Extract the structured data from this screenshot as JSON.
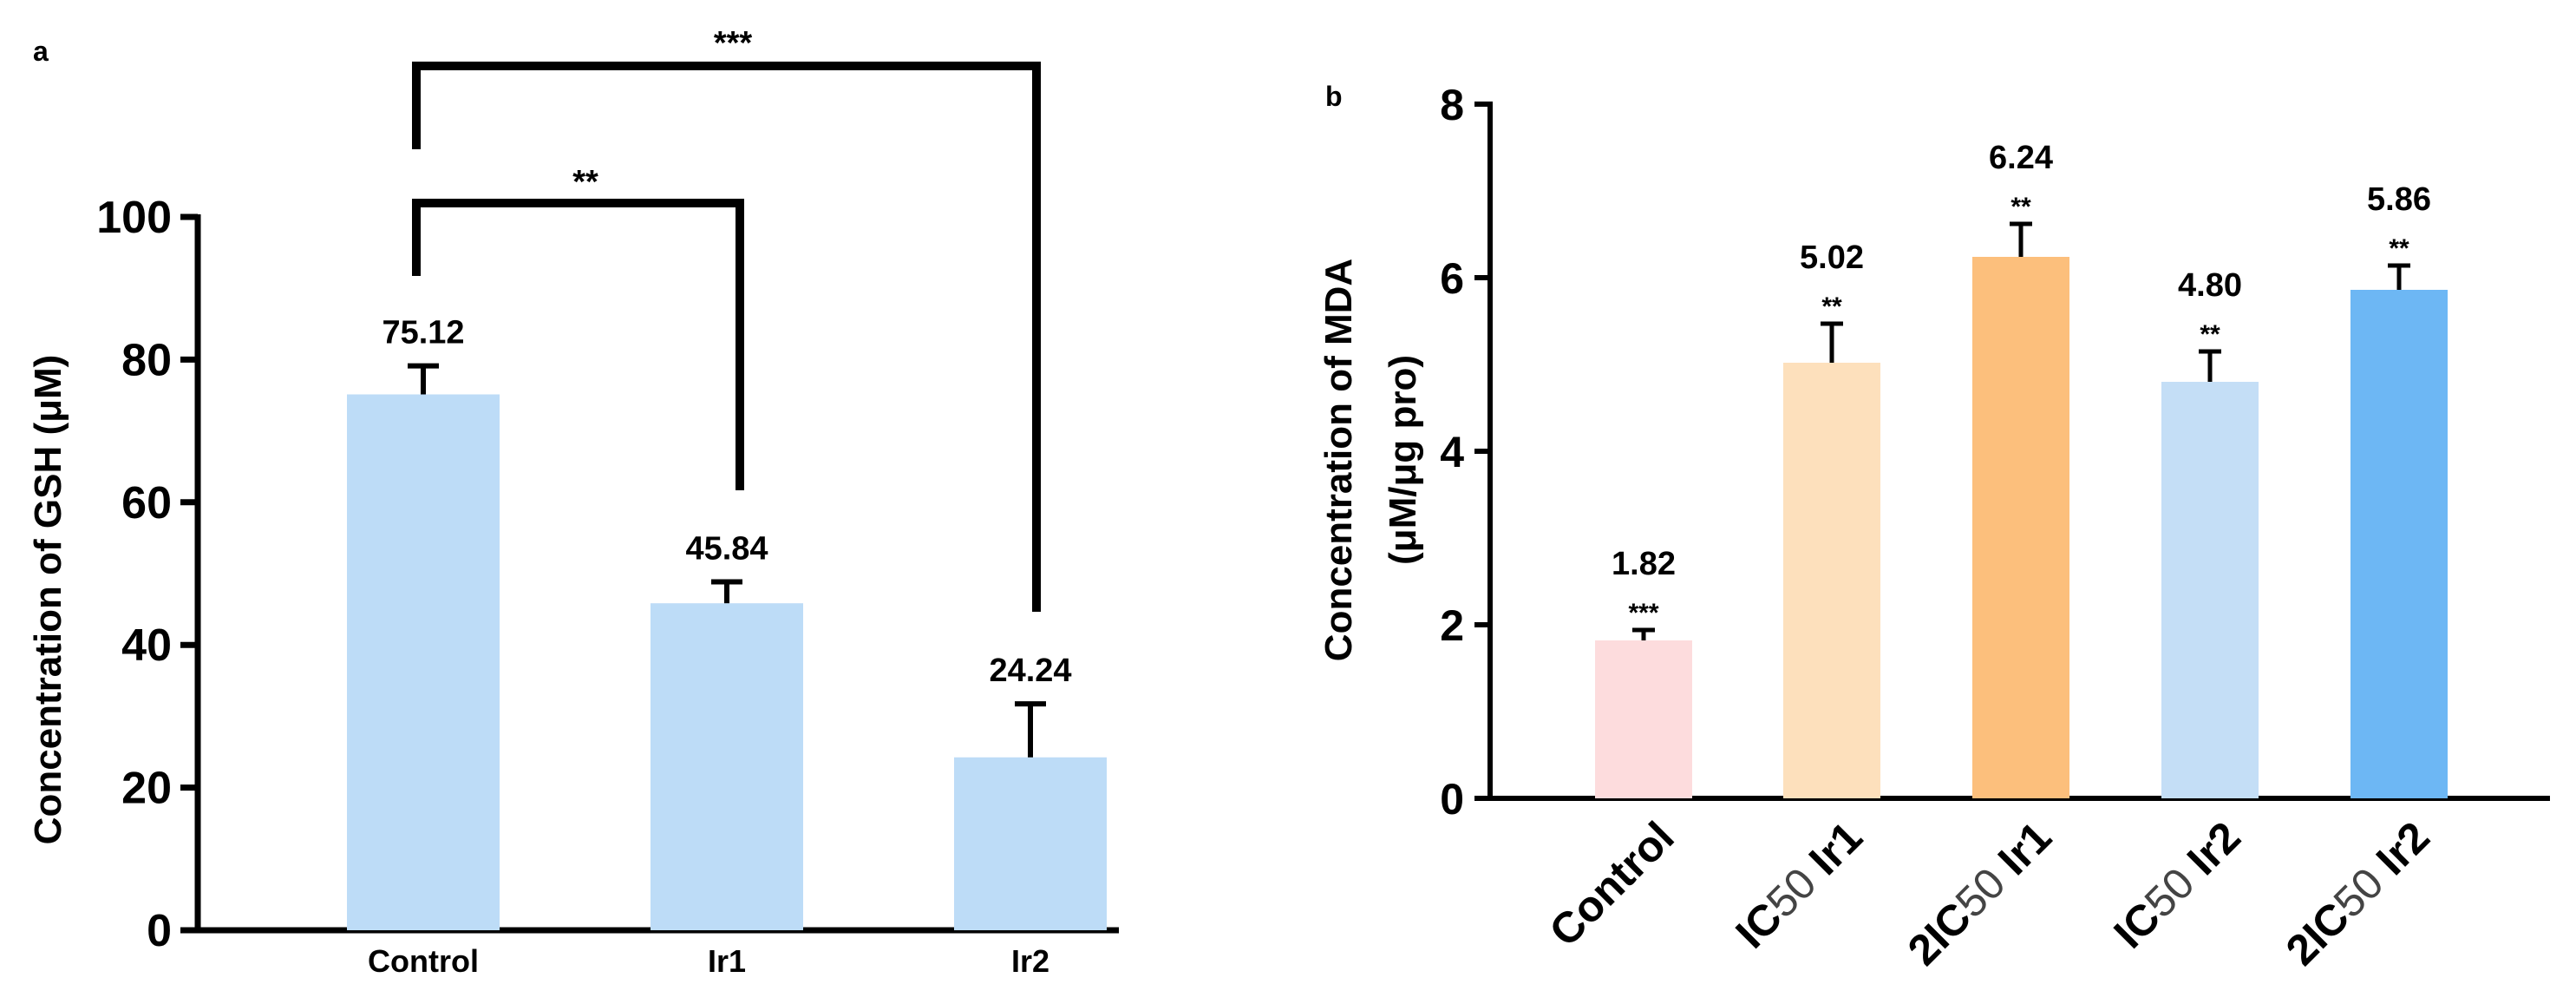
{
  "chart_data": [
    {
      "panel": "a",
      "type": "bar",
      "ylabel": "Concentration of GSH (μM)",
      "ylim": [
        0,
        100
      ],
      "yticks": [
        "0",
        "20",
        "40",
        "60",
        "80",
        "100"
      ],
      "categories": [
        "Control",
        "Ir1",
        "Ir2"
      ],
      "values": [
        75.12,
        45.84,
        24.24
      ],
      "value_labels": [
        "75.12",
        "45.84",
        "24.24"
      ],
      "errors": [
        4.0,
        3.0,
        7.5
      ],
      "colors": [
        "#bddcf7",
        "#bddcf7",
        "#bddcf7"
      ],
      "brackets": [
        {
          "from": "Control",
          "to": "Ir1",
          "label": "**"
        },
        {
          "from": "Control",
          "to": "Ir2",
          "label": "***"
        }
      ]
    },
    {
      "panel": "b",
      "type": "bar",
      "ylabel_line1": "Concentration of MDA",
      "ylabel_line2": "(μM/μg pro)",
      "ylim": [
        0,
        8
      ],
      "yticks": [
        "0",
        "2",
        "4",
        "6",
        "8"
      ],
      "categories": [
        {
          "prefix": "",
          "sub": "",
          "suffix": "Control"
        },
        {
          "prefix": "IC",
          "sub": "50",
          "suffix": " Ir1"
        },
        {
          "prefix": "2IC",
          "sub": "50",
          "suffix": " Ir1"
        },
        {
          "prefix": "IC",
          "sub": "50",
          "suffix": " Ir2"
        },
        {
          "prefix": "2IC",
          "sub": "50",
          "suffix": " Ir2"
        }
      ],
      "values": [
        1.82,
        5.02,
        6.24,
        4.8,
        5.86
      ],
      "value_labels": [
        "1.82",
        "5.02",
        "6.24",
        "4.80",
        "5.86"
      ],
      "significance": [
        "***",
        "**",
        "**",
        "**",
        "**"
      ],
      "errors": [
        0.12,
        0.45,
        0.38,
        0.35,
        0.28
      ],
      "colors": [
        "#fddcdd",
        "#fde0bc",
        "#fcbf7c",
        "#c4def6",
        "#6db7f4"
      ]
    }
  ]
}
